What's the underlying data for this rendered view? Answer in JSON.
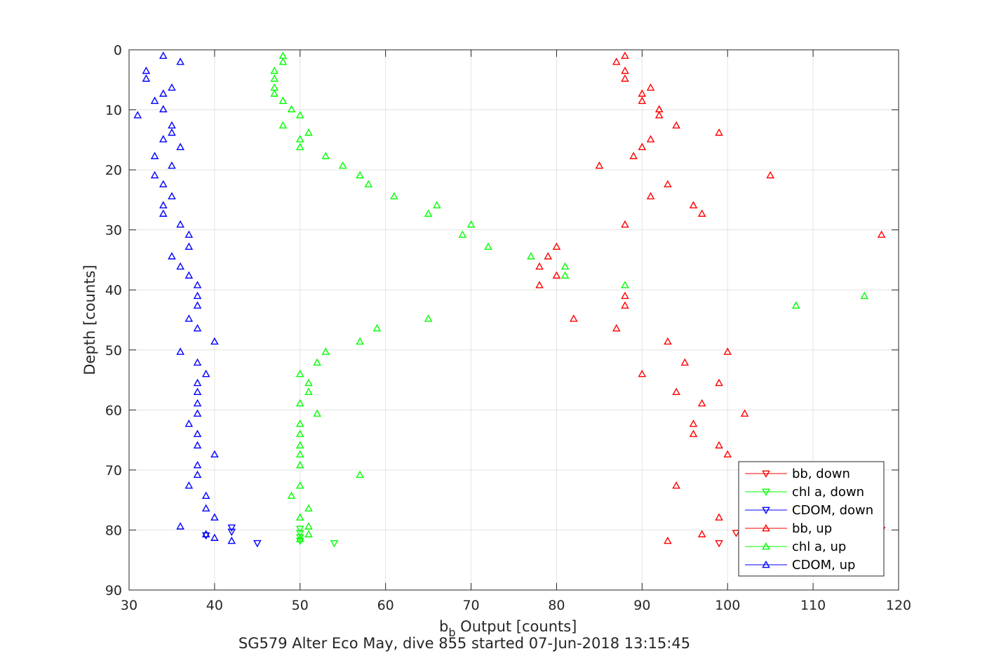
{
  "chart_data": {
    "type": "scatter",
    "xlabel": "b",
    "xlabel_sub": "b",
    "xlabel_rest": " Output [counts]",
    "ylabel": "Depth [counts]",
    "title_bottom": "SG579 Alter Eco May, dive 855 started 07-Jun-2018 13:15:45",
    "xlim": [
      30,
      120
    ],
    "ylim": [
      0,
      90
    ],
    "y_reversed": true,
    "grid": true,
    "xticks": [
      30,
      40,
      50,
      60,
      70,
      80,
      90,
      100,
      110,
      120
    ],
    "yticks": [
      0,
      10,
      20,
      30,
      40,
      50,
      60,
      70,
      80,
      90
    ],
    "legend_position": "bottom-right",
    "series": [
      {
        "name": "bb, down",
        "color": "#ff0000",
        "marker": "triangle-down",
        "points": [
          [
            101,
            80.5
          ],
          [
            99,
            82.2
          ],
          [
            118,
            80
          ]
        ]
      },
      {
        "name": "chl a, down",
        "color": "#00ff00",
        "marker": "triangle-down",
        "points": [
          [
            50,
            79.8
          ],
          [
            50,
            80.5
          ],
          [
            50,
            81.2
          ],
          [
            50,
            81.8
          ],
          [
            54,
            82.2
          ]
        ]
      },
      {
        "name": "CDOM, down",
        "color": "#0000ff",
        "marker": "triangle-down",
        "points": [
          [
            42,
            79.6
          ],
          [
            42,
            80.3
          ],
          [
            39,
            80.9
          ],
          [
            45,
            82.2
          ]
        ]
      },
      {
        "name": "bb, up",
        "color": "#ff0000",
        "marker": "triangle-up",
        "points": [
          [
            88,
            1
          ],
          [
            87,
            2
          ],
          [
            88,
            3.5
          ],
          [
            88,
            4.8
          ],
          [
            91,
            6.3
          ],
          [
            90,
            7.3
          ],
          [
            90,
            8.5
          ],
          [
            92,
            9.9
          ],
          [
            92,
            10.9
          ],
          [
            94,
            12.6
          ],
          [
            99,
            13.8
          ],
          [
            91,
            14.9
          ],
          [
            90,
            16.2
          ],
          [
            89,
            17.7
          ],
          [
            85,
            19.3
          ],
          [
            105,
            20.9
          ],
          [
            93,
            22.4
          ],
          [
            91,
            24.4
          ],
          [
            96,
            25.9
          ],
          [
            97,
            27.3
          ],
          [
            88,
            29.1
          ],
          [
            118,
            30.8
          ],
          [
            80,
            32.8
          ],
          [
            79,
            34.4
          ],
          [
            78,
            36.1
          ],
          [
            80,
            37.6
          ],
          [
            78,
            39.2
          ],
          [
            88,
            41
          ],
          [
            88,
            42.6
          ],
          [
            82,
            44.8
          ],
          [
            87,
            46.4
          ],
          [
            93,
            48.6
          ],
          [
            100,
            50.3
          ],
          [
            95,
            52.1
          ],
          [
            90,
            54
          ],
          [
            99,
            55.5
          ],
          [
            94,
            57
          ],
          [
            97,
            58.9
          ],
          [
            102,
            60.6
          ],
          [
            96,
            62.3
          ],
          [
            96,
            64
          ],
          [
            99,
            65.9
          ],
          [
            100,
            67.4
          ],
          [
            94,
            72.6
          ],
          [
            99,
            77.9
          ],
          [
            97,
            80.7
          ],
          [
            93,
            81.8
          ]
        ]
      },
      {
        "name": "chl a, up",
        "color": "#00ff00",
        "marker": "triangle-up",
        "points": [
          [
            48,
            1
          ],
          [
            48,
            2
          ],
          [
            47,
            3.5
          ],
          [
            47,
            4.8
          ],
          [
            47,
            6.3
          ],
          [
            47,
            7.3
          ],
          [
            48,
            8.5
          ],
          [
            49,
            9.9
          ],
          [
            50,
            10.9
          ],
          [
            48,
            12.6
          ],
          [
            51,
            13.8
          ],
          [
            50,
            14.9
          ],
          [
            50,
            16.2
          ],
          [
            53,
            17.7
          ],
          [
            55,
            19.3
          ],
          [
            57,
            20.9
          ],
          [
            58,
            22.4
          ],
          [
            61,
            24.4
          ],
          [
            66,
            25.9
          ],
          [
            65,
            27.3
          ],
          [
            70,
            29.1
          ],
          [
            69,
            30.8
          ],
          [
            72,
            32.8
          ],
          [
            77,
            34.4
          ],
          [
            81,
            36.1
          ],
          [
            81,
            37.6
          ],
          [
            88,
            39.2
          ],
          [
            116,
            41
          ],
          [
            108,
            42.6
          ],
          [
            65,
            44.8
          ],
          [
            59,
            46.4
          ],
          [
            57,
            48.6
          ],
          [
            53,
            50.3
          ],
          [
            52,
            52.1
          ],
          [
            50,
            54
          ],
          [
            51,
            55.5
          ],
          [
            51,
            57
          ],
          [
            50,
            58.9
          ],
          [
            52,
            60.6
          ],
          [
            50,
            62.3
          ],
          [
            50,
            64
          ],
          [
            50,
            65.9
          ],
          [
            50,
            67.4
          ],
          [
            50,
            69.2
          ],
          [
            57,
            70.8
          ],
          [
            50,
            72.6
          ],
          [
            49,
            74.3
          ],
          [
            51,
            76.4
          ],
          [
            50,
            77.9
          ],
          [
            51,
            79.4
          ],
          [
            51,
            80.7
          ],
          [
            50,
            81.5
          ]
        ]
      },
      {
        "name": "CDOM, up",
        "color": "#0000ff",
        "marker": "triangle-up",
        "points": [
          [
            34,
            1
          ],
          [
            36,
            2
          ],
          [
            32,
            3.5
          ],
          [
            32,
            4.8
          ],
          [
            35,
            6.3
          ],
          [
            34,
            7.3
          ],
          [
            33,
            8.5
          ],
          [
            34,
            9.9
          ],
          [
            31,
            10.9
          ],
          [
            35,
            12.6
          ],
          [
            35,
            13.8
          ],
          [
            34,
            14.9
          ],
          [
            36,
            16.2
          ],
          [
            33,
            17.7
          ],
          [
            35,
            19.3
          ],
          [
            33,
            20.9
          ],
          [
            34,
            22.4
          ],
          [
            35,
            24.4
          ],
          [
            34,
            25.9
          ],
          [
            34,
            27.3
          ],
          [
            36,
            29.1
          ],
          [
            37,
            30.8
          ],
          [
            37,
            32.8
          ],
          [
            35,
            34.4
          ],
          [
            36,
            36.1
          ],
          [
            37,
            37.6
          ],
          [
            38,
            39.2
          ],
          [
            38,
            41
          ],
          [
            38,
            42.6
          ],
          [
            37,
            44.8
          ],
          [
            38,
            46.4
          ],
          [
            40,
            48.6
          ],
          [
            36,
            50.3
          ],
          [
            38,
            52.1
          ],
          [
            39,
            54
          ],
          [
            38,
            55.5
          ],
          [
            38,
            57
          ],
          [
            38,
            58.9
          ],
          [
            38,
            60.6
          ],
          [
            37,
            62.3
          ],
          [
            38,
            64
          ],
          [
            38,
            65.9
          ],
          [
            40,
            67.4
          ],
          [
            38,
            69.2
          ],
          [
            38,
            70.8
          ],
          [
            37,
            72.6
          ],
          [
            39,
            74.3
          ],
          [
            39,
            76.4
          ],
          [
            40,
            77.9
          ],
          [
            36,
            79.4
          ],
          [
            39,
            80.7
          ],
          [
            40,
            81.3
          ],
          [
            42,
            81.8
          ]
        ]
      }
    ]
  }
}
